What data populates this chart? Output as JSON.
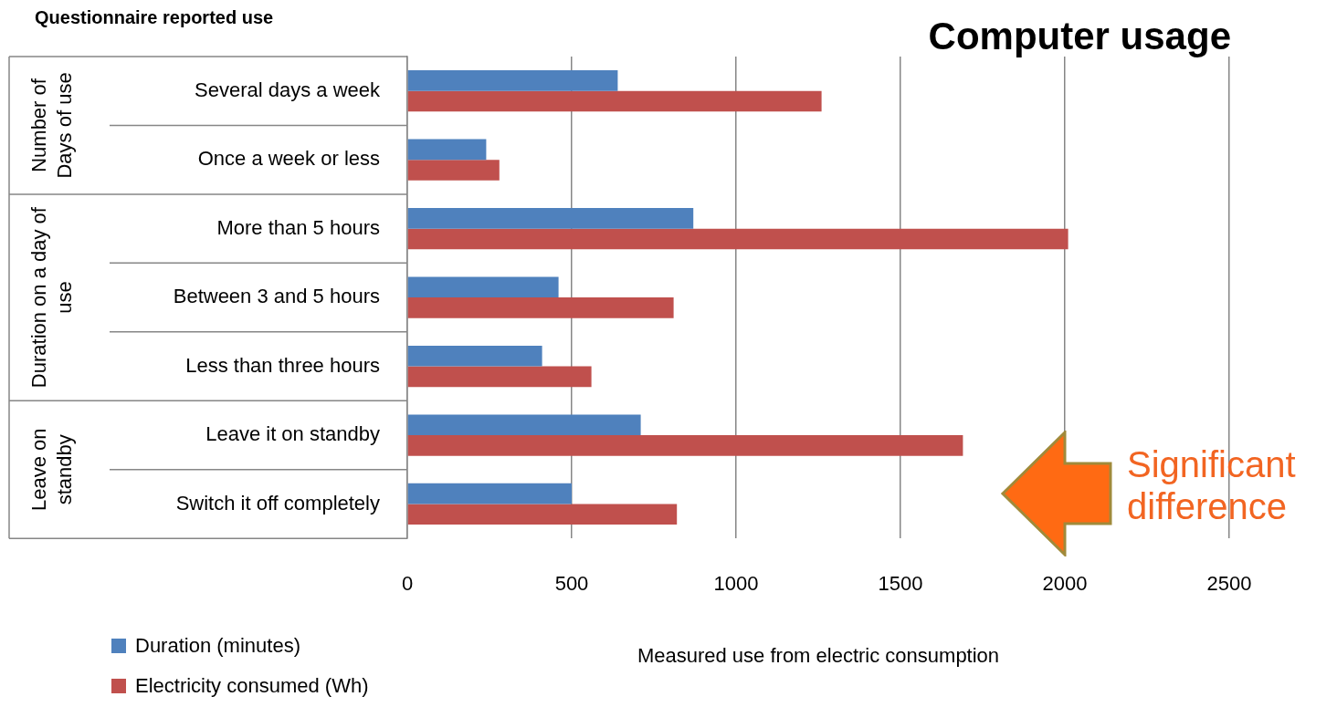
{
  "chart_data": {
    "type": "bar",
    "orientation": "horizontal",
    "title": "Computer usage",
    "xlabel": "Measured use from electric consumption",
    "categories": [
      "Several days a week",
      "Once a week or less",
      "More than 5 hours",
      "Between 3 and 5 hours",
      "Less than three hours",
      "Leave it on standby",
      "Switch it off completely"
    ],
    "series": [
      {
        "name": "Duration (minutes)",
        "color": "#4f81bd",
        "values": [
          640,
          240,
          870,
          460,
          410,
          710,
          500
        ]
      },
      {
        "name": "Electricity consumed  (Wh)",
        "color": "#c0504d",
        "values": [
          1260,
          280,
          2010,
          810,
          560,
          1690,
          820
        ]
      }
    ],
    "xlim": [
      0,
      2500
    ],
    "xticks": [
      0,
      500,
      1000,
      1500,
      2000,
      2500
    ],
    "grid": "x",
    "legend": "bottom left",
    "annotations": [
      "Questionnaire reported use",
      "Number of Days of use",
      "Duration on a day of use",
      "Leave on standby",
      "Significant difference"
    ]
  }
}
